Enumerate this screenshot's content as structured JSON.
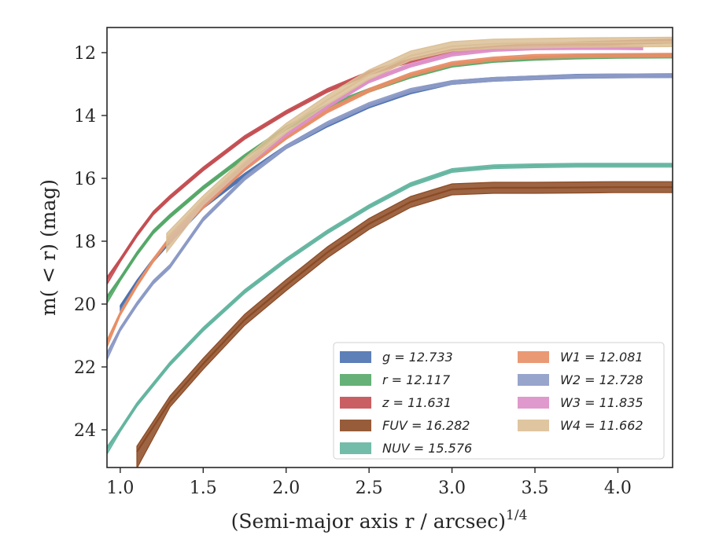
{
  "chart_data": {
    "type": "line",
    "title": "",
    "xlabel": "(Semi-major axis r / arcsec)",
    "xlabel_sup": "1/4",
    "ylabel": "m( < r) (mag)",
    "xlim": [
      0.92,
      4.33
    ],
    "ylim": [
      25.2,
      11.2
    ],
    "y_inverted": true,
    "xticks": [
      "1.0",
      "1.5",
      "2.0",
      "2.5",
      "3.0",
      "3.5",
      "4.0"
    ],
    "yticks": [
      "12",
      "14",
      "16",
      "18",
      "20",
      "22",
      "24"
    ],
    "legend_placement": "lower-right",
    "legend_columns": 2,
    "series": [
      {
        "name": "g = 12.733",
        "color": "#4c72b0",
        "band": 0.12,
        "x": [
          1.0,
          1.1,
          1.2,
          1.3,
          1.5,
          1.75,
          2.0,
          2.25,
          2.5,
          2.75,
          3.0,
          3.25,
          3.5,
          3.75,
          4.0,
          4.33
        ],
        "y": [
          20.1,
          19.3,
          18.6,
          18.0,
          16.9,
          15.9,
          15.0,
          14.3,
          13.7,
          13.25,
          12.95,
          12.85,
          12.8,
          12.75,
          12.74,
          12.73
        ]
      },
      {
        "name": "r = 12.117",
        "color": "#55a868",
        "band": 0.12,
        "x": [
          0.92,
          1.0,
          1.1,
          1.2,
          1.3,
          1.5,
          1.75,
          2.0,
          2.25,
          2.5,
          2.75,
          3.0,
          3.25,
          3.5,
          3.75,
          4.0,
          4.33
        ],
        "y": [
          19.8,
          19.2,
          18.4,
          17.7,
          17.2,
          16.3,
          15.3,
          14.4,
          13.7,
          13.2,
          12.75,
          12.4,
          12.25,
          12.18,
          12.14,
          12.12,
          12.11
        ]
      },
      {
        "name": "z = 11.631",
        "color": "#c44e52",
        "band": 0.12,
        "x": [
          0.92,
          1.0,
          1.1,
          1.2,
          1.3,
          1.5,
          1.75,
          2.0,
          2.25,
          2.5,
          2.75,
          3.0,
          3.25,
          3.5,
          3.75,
          4.0,
          4.33
        ],
        "y": [
          19.2,
          18.6,
          17.8,
          17.1,
          16.6,
          15.7,
          14.7,
          13.9,
          13.2,
          12.65,
          12.25,
          11.95,
          11.85,
          11.78,
          11.72,
          11.68,
          11.63
        ]
      },
      {
        "name": "FUV = 16.282",
        "color": "#8c4a23",
        "band": 0.35,
        "x": [
          1.1,
          1.3,
          1.5,
          1.75,
          2.0,
          2.25,
          2.5,
          2.75,
          3.0,
          3.25,
          3.5,
          3.75,
          3.97,
          4.33
        ],
        "y": [
          24.7,
          23.1,
          21.9,
          20.5,
          19.4,
          18.35,
          17.45,
          16.75,
          16.35,
          16.3,
          16.3,
          16.29,
          16.28,
          16.28
        ]
      },
      {
        "name": "NUV = 15.576",
        "color": "#64b5a0",
        "band": 0.12,
        "x": [
          0.92,
          1.0,
          1.1,
          1.3,
          1.5,
          1.75,
          2.0,
          2.25,
          2.5,
          2.75,
          3.0,
          3.25,
          3.5,
          3.75,
          4.0,
          4.33
        ],
        "y": [
          24.6,
          24.0,
          23.2,
          21.9,
          20.8,
          19.6,
          18.6,
          17.7,
          16.9,
          16.2,
          15.75,
          15.63,
          15.6,
          15.58,
          15.58,
          15.58
        ]
      },
      {
        "name": "W1 = 12.081",
        "color": "#e88e66",
        "band": 0.12,
        "x": [
          0.92,
          1.0,
          1.1,
          1.2,
          1.3,
          1.5,
          1.75,
          2.0,
          2.25,
          2.5,
          2.75,
          3.0,
          3.25,
          3.5,
          3.75,
          4.0,
          4.33
        ],
        "y": [
          21.2,
          20.3,
          19.4,
          18.6,
          17.9,
          16.9,
          15.7,
          14.7,
          13.85,
          13.2,
          12.7,
          12.35,
          12.2,
          12.12,
          12.1,
          12.09,
          12.08
        ]
      },
      {
        "name": "W2 = 12.728",
        "color": "#8c9ac6",
        "band": 0.12,
        "x": [
          0.92,
          1.0,
          1.1,
          1.2,
          1.3,
          1.5,
          1.75,
          2.0,
          2.25,
          2.5,
          2.75,
          3.0,
          3.25,
          3.5,
          3.75,
          4.0,
          4.33
        ],
        "y": [
          21.6,
          20.8,
          20.0,
          19.3,
          18.8,
          17.3,
          16.0,
          15.0,
          14.25,
          13.65,
          13.2,
          12.95,
          12.85,
          12.8,
          12.76,
          12.74,
          12.73
        ]
      },
      {
        "name": "W3 = 11.835",
        "color": "#dd8ec6",
        "band": 0.12,
        "x": [
          1.3,
          1.5,
          1.75,
          2.0,
          2.25,
          2.5,
          2.75,
          3.0,
          3.25,
          3.5,
          3.75,
          4.0,
          4.15
        ],
        "y": [
          17.9,
          16.8,
          15.6,
          14.6,
          13.7,
          12.9,
          12.4,
          12.05,
          11.9,
          11.85,
          11.84,
          11.84,
          11.85
        ]
      },
      {
        "name": "W4 = 11.662",
        "color": "#dbbf96",
        "band": 0.3,
        "x": [
          1.28,
          1.5,
          1.75,
          2.0,
          2.25,
          2.5,
          2.75,
          3.0,
          3.25,
          3.5,
          3.75,
          4.0,
          4.33
        ],
        "y": [
          17.9,
          16.7,
          15.5,
          14.4,
          13.5,
          12.7,
          12.1,
          11.8,
          11.72,
          11.7,
          11.68,
          11.67,
          11.66
        ]
      }
    ]
  }
}
